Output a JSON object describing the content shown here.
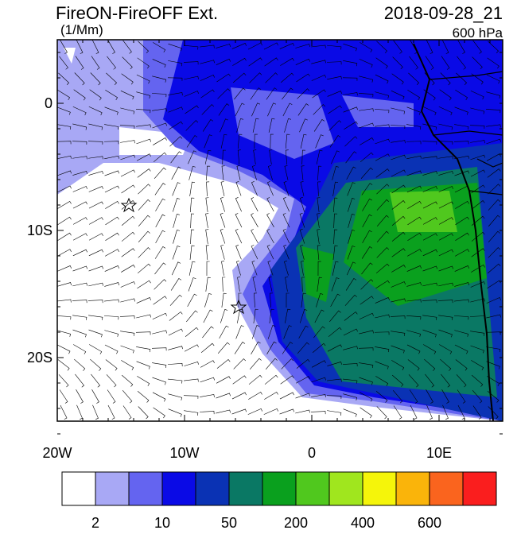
{
  "header": {
    "title": "FireON-FireOFF Ext.",
    "units": "(1/Mm)",
    "date": "2018-09-28_21",
    "level": "600 hPa"
  },
  "axes": {
    "lat_labels": [
      "0",
      "10S",
      "20S"
    ],
    "lon_labels": [
      "20W",
      "10W",
      "0",
      "10E"
    ]
  },
  "colorbar": {
    "colors": [
      "#ffffff",
      "#a8a8f5",
      "#6464f0",
      "#0a0ae6",
      "#0a32b4",
      "#0a7864",
      "#0aa01e",
      "#50c81e",
      "#a0e61e",
      "#f5f50a",
      "#fab40a",
      "#fa641e",
      "#fa1e1e"
    ],
    "labels": [
      "2",
      "10",
      "50",
      "200",
      "400",
      "600"
    ]
  }
}
